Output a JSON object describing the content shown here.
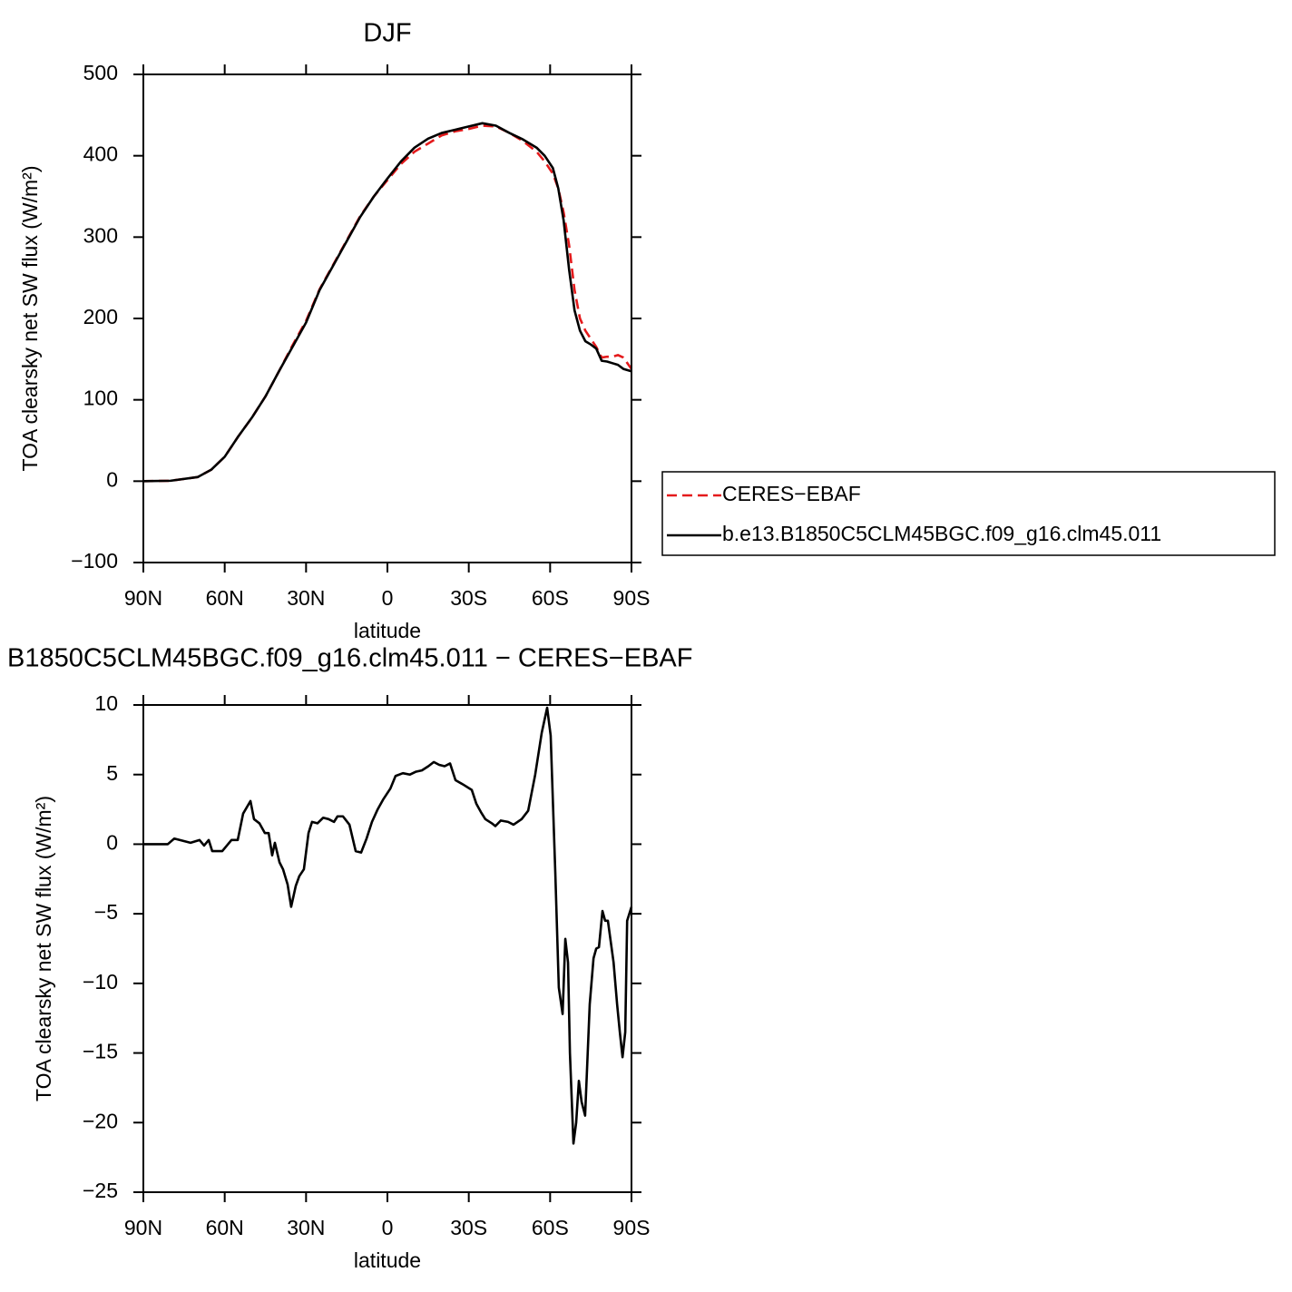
{
  "chart_data": [
    {
      "type": "line",
      "title": "DJF",
      "xlabel": "latitude",
      "ylabel": "TOA clearsky net SW flux (W/m²)",
      "x": [
        90,
        80,
        70,
        65,
        60,
        55,
        50,
        45,
        40,
        35,
        30,
        25,
        20,
        15,
        10,
        5,
        0,
        -5,
        -10,
        -15,
        -20,
        -25,
        -30,
        -35,
        -40,
        -45,
        -50,
        -55,
        -58,
        -61,
        -63,
        -65,
        -67,
        -69,
        -71,
        -73,
        -75,
        -77,
        -79,
        -81,
        -83,
        -85,
        -87,
        -90
      ],
      "series": [
        {
          "name": "CERES−EBAF",
          "color": "#e41a1c",
          "dash": true,
          "values": [
            0,
            0.5,
            5,
            14,
            30,
            55,
            78,
            104,
            135,
            167,
            197,
            236,
            266,
            296,
            326,
            350,
            370,
            390,
            405,
            415,
            425,
            430,
            433,
            437,
            436,
            428,
            418,
            405,
            393,
            378,
            360,
            330,
            290,
            235,
            200,
            185,
            175,
            165,
            152,
            153,
            153,
            155,
            152,
            138
          ]
        },
        {
          "name": "b.e13.B1850C5CLM45BGC.f09_g16.clm45.011",
          "color": "#000000",
          "dash": false,
          "values": [
            0,
            0.5,
            5,
            14,
            30,
            55,
            78,
            104,
            135,
            165,
            195,
            235,
            265,
            295,
            325,
            350,
            372,
            393,
            410,
            421,
            428,
            432,
            436,
            440,
            437,
            428,
            420,
            410,
            400,
            385,
            360,
            320,
            260,
            210,
            185,
            172,
            168,
            163,
            148,
            147,
            145,
            143,
            138,
            135
          ]
        }
      ],
      "xlim": [
        90,
        -90
      ],
      "xticks": [
        {
          "value": 90,
          "label": "90N"
        },
        {
          "value": 60,
          "label": "60N"
        },
        {
          "value": 30,
          "label": "30N"
        },
        0,
        {
          "value": -30,
          "label": "30S"
        },
        {
          "value": -60,
          "label": "60S"
        },
        {
          "value": -90,
          "label": "90S"
        }
      ],
      "ylim": [
        -100,
        500
      ],
      "yticks": [
        {
          "value": -100,
          "label": "−100"
        },
        0,
        100,
        200,
        300,
        400,
        500
      ],
      "legend": "right"
    },
    {
      "type": "line",
      "title": "B1850C5CLM45BGC.f09_g16.clm45.011 − CERES−EBAF",
      "xlabel": "latitude",
      "ylabel": "TOA clearsky net SW flux (W/m²)",
      "x": [
        90,
        81,
        78.6,
        72.6,
        69.3,
        67.6,
        65.9,
        64.6,
        60.9,
        57.5,
        55.2,
        53.2,
        50.5,
        49.2,
        47.2,
        45.2,
        43.8,
        42.5,
        41.5,
        39.8,
        38.5,
        36.8,
        35.5,
        33.8,
        32.5,
        30.8,
        29.1,
        27.8,
        25.8,
        23.7,
        21.7,
        19.7,
        18.4,
        16.4,
        14,
        11.7,
        9.7,
        7.7,
        5.7,
        3.6,
        1.6,
        -1.1,
        -3,
        -5.7,
        -8.3,
        -10.4,
        -12.7,
        -15.1,
        -17.1,
        -19.1,
        -21.1,
        -23.1,
        -25.1,
        -27.8,
        -31.1,
        -32.8,
        -34.5,
        -36.1,
        -38.5,
        -39.8,
        -41.8,
        -44.5,
        -46.5,
        -49.5,
        -51.9,
        -54.5,
        -56.9,
        -58.9,
        -60.2,
        -61.9,
        -63.2,
        -64.6,
        -65.6,
        -66.6,
        -67.3,
        -68.6,
        -69.6,
        -70.6,
        -71.6,
        -72.9,
        -74.6,
        -76,
        -77,
        -78,
        -79.3,
        -80.3,
        -81.3,
        -83.4,
        -84.7,
        -85.7,
        -86.7,
        -87.7,
        -88.4,
        -90
      ],
      "series": [
        {
          "color": "#000000",
          "dash": false,
          "values": [
            0,
            0,
            0.4,
            0.1,
            0.3,
            -0.1,
            0.3,
            -0.5,
            -0.5,
            0.3,
            0.3,
            2.2,
            3.1,
            1.8,
            1.5,
            0.8,
            0.8,
            -0.8,
            0.1,
            -1.3,
            -1.8,
            -2.9,
            -4.5,
            -3,
            -2.3,
            -1.8,
            0.8,
            1.6,
            1.5,
            1.9,
            1.8,
            1.6,
            2,
            2,
            1.4,
            -0.5,
            -0.6,
            0.4,
            1.6,
            2.5,
            3.2,
            4,
            4.9,
            5.1,
            5,
            5.2,
            5.3,
            5.6,
            5.9,
            5.7,
            5.6,
            5.8,
            4.6,
            4.3,
            3.9,
            2.9,
            2.3,
            1.8,
            1.5,
            1.3,
            1.7,
            1.6,
            1.4,
            1.8,
            2.4,
            5,
            8,
            9.8,
            7.8,
            -2,
            -10.3,
            -12.2,
            -6.8,
            -8.5,
            -15,
            -21.5,
            -20,
            -17,
            -18.5,
            -19.5,
            -11.5,
            -8.2,
            -7.5,
            -7.4,
            -4.8,
            -5.5,
            -5.5,
            -8.5,
            -11.5,
            -13.5,
            -15.3,
            -13.5,
            -5.5,
            -4.5
          ]
        }
      ],
      "xlim": [
        90,
        -90
      ],
      "xticks": [
        {
          "value": 90,
          "label": "90N"
        },
        {
          "value": 60,
          "label": "60N"
        },
        {
          "value": 30,
          "label": "30N"
        },
        0,
        {
          "value": -30,
          "label": "30S"
        },
        {
          "value": -60,
          "label": "60S"
        },
        {
          "value": -90,
          "label": "90S"
        }
      ],
      "ylim": [
        -25,
        10
      ],
      "yticks": [
        {
          "value": -25,
          "label": "−25"
        },
        {
          "value": -20,
          "label": "−20"
        },
        {
          "value": -15,
          "label": "−15"
        },
        {
          "value": -10,
          "label": "−10"
        },
        {
          "value": -5,
          "label": "−5"
        },
        0,
        5,
        10
      ]
    }
  ]
}
